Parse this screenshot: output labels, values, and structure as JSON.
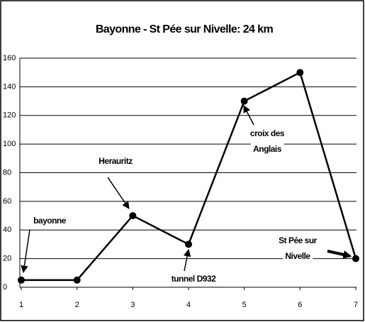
{
  "chart_data": {
    "type": "line",
    "title": "Bayonne - St Pée sur Nivelle: 24 km",
    "x": [
      1,
      2,
      3,
      4,
      5,
      6,
      7
    ],
    "series": [
      {
        "color": "#000000",
        "values": [
          5,
          5,
          50,
          30,
          130,
          150,
          20
        ]
      }
    ],
    "xlim": [
      1,
      7
    ],
    "xticks": [
      1,
      2,
      3,
      4,
      5,
      6,
      7
    ],
    "ylim": [
      0,
      160
    ],
    "yticks": [
      0,
      20,
      40,
      60,
      80,
      100,
      120,
      140,
      160
    ],
    "grid": true,
    "annotations": [
      {
        "lines": [
          "bayonne"
        ]
      },
      {
        "lines": [
          "Herauritz"
        ]
      },
      {
        "lines": [
          "tunnel D932"
        ]
      },
      {
        "lines": [
          "croix des",
          "Anglais"
        ]
      },
      {
        "lines": [
          "St Pée sur",
          "Nivelle"
        ]
      }
    ]
  }
}
